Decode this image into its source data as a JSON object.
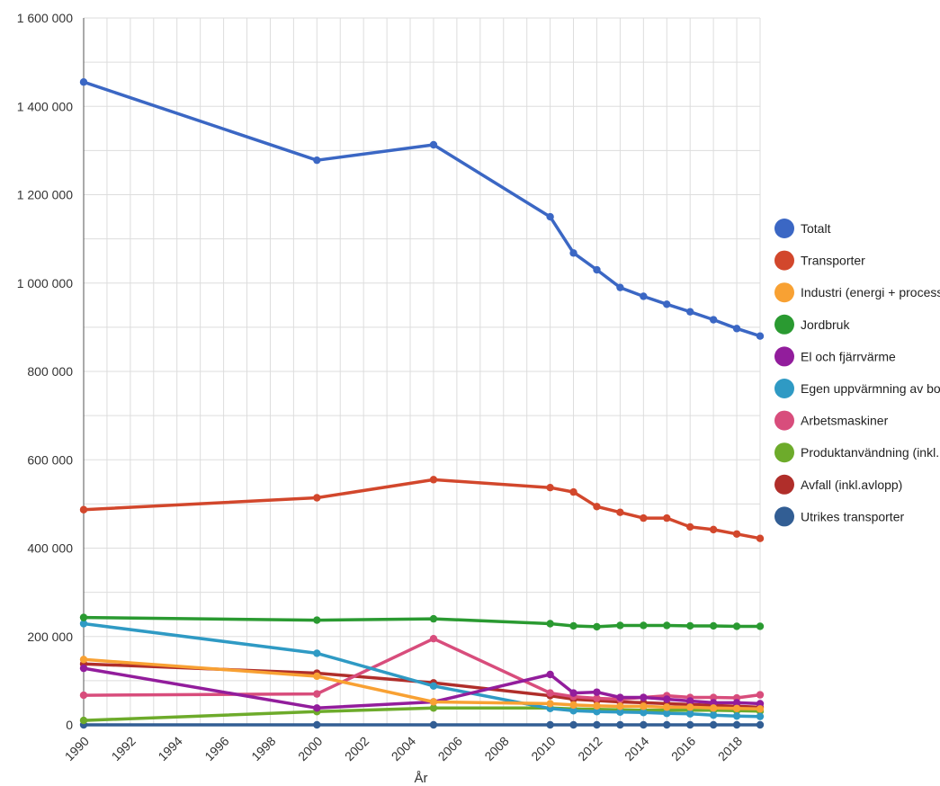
{
  "chart_data": {
    "type": "line",
    "title": "",
    "xlabel": "År",
    "ylabel": "",
    "xlim": [
      1990,
      2019
    ],
    "ylim": [
      0,
      1600000
    ],
    "x_ticks": [
      "1990",
      "1992",
      "1994",
      "1996",
      "1998",
      "2000",
      "2002",
      "2004",
      "2006",
      "2008",
      "2010",
      "2012",
      "2014",
      "2016",
      "2018"
    ],
    "y_ticks": [
      "0",
      "200 000",
      "400 000",
      "600 000",
      "800 000",
      "1 000 000",
      "1 200 000",
      "1 400 000",
      "1 600 000"
    ],
    "y_tick_values": [
      0,
      200000,
      400000,
      600000,
      800000,
      1000000,
      1200000,
      1400000,
      1600000
    ],
    "grid": true,
    "legend_position": "right",
    "x": [
      1990,
      2000,
      2005,
      2010,
      2011,
      2012,
      2013,
      2014,
      2015,
      2016,
      2017,
      2018,
      2019
    ],
    "series": [
      {
        "name": "Totalt",
        "color": "#3b67c4",
        "values": [
          1455000,
          1278000,
          1313000,
          1150000,
          1068000,
          1030000,
          990000,
          970000,
          952000,
          935000,
          917000,
          897000,
          880000
        ]
      },
      {
        "name": "Transporter",
        "color": "#d2472c",
        "values": [
          487000,
          514000,
          555000,
          537000,
          527000,
          494000,
          481000,
          468000,
          468000,
          448000,
          442000,
          432000,
          422000
        ]
      },
      {
        "name": "Industri (energi + process)",
        "color": "#f8a133",
        "values": [
          148000,
          110000,
          52000,
          48000,
          45000,
          43000,
          42000,
          42000,
          40000,
          40000,
          38000,
          37000,
          36000
        ]
      },
      {
        "name": "Jordbruk",
        "color": "#2a9a31",
        "values": [
          243000,
          237000,
          240000,
          229000,
          224000,
          222000,
          225000,
          225000,
          225000,
          224000,
          224000,
          223000,
          223000
        ]
      },
      {
        "name": "El och fjärrvärme",
        "color": "#921d9c",
        "values": [
          128000,
          38000,
          52000,
          114000,
          72000,
          74000,
          62000,
          62000,
          58000,
          54000,
          50000,
          50000,
          48000
        ]
      },
      {
        "name": "Egen uppvärmning av bostäder och lokaler",
        "color": "#2f9ac4",
        "values": [
          229000,
          162000,
          88000,
          37000,
          32000,
          30000,
          29000,
          28000,
          26000,
          25000,
          22000,
          20000,
          19000
        ]
      },
      {
        "name": "Arbetsmaskiner",
        "color": "#d84d7c",
        "values": [
          67000,
          70000,
          195000,
          72000,
          64000,
          60000,
          58000,
          62000,
          66000,
          62000,
          62000,
          61000,
          68000
        ]
      },
      {
        "name": "Produktanvändning (inkl. lösningsmedel)",
        "color": "#6dab2b",
        "values": [
          10000,
          30000,
          38000,
          38000,
          36000,
          35000,
          34000,
          33000,
          33000,
          33000,
          33000,
          32000,
          31000
        ]
      },
      {
        "name": "Avfall (inkl.avlopp)",
        "color": "#b02e2a",
        "values": [
          138000,
          117000,
          95000,
          66000,
          58000,
          55000,
          52000,
          50000,
          48000,
          46000,
          44000,
          42000,
          40000
        ]
      },
      {
        "name": "Utrikes transporter",
        "color": "#325e94",
        "values": [
          0,
          0,
          0,
          0,
          0,
          0,
          0,
          0,
          0,
          0,
          0,
          0,
          0
        ]
      }
    ]
  }
}
